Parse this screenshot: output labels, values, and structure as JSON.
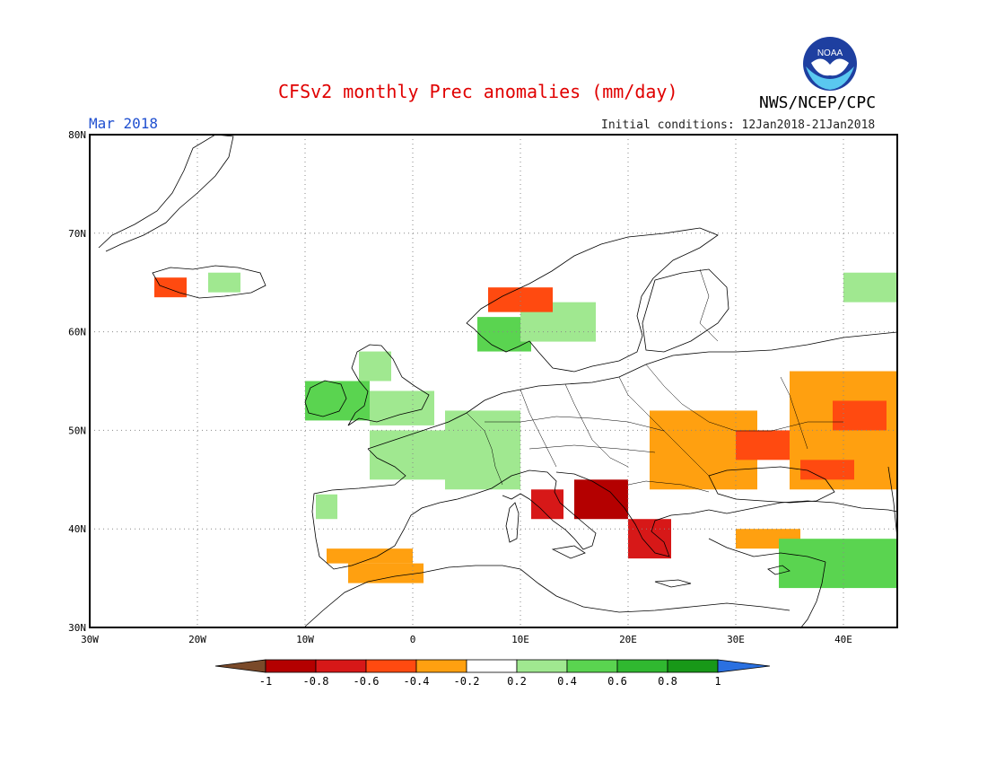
{
  "header": {
    "title": "CFSv2 monthly Prec anomalies (mm/day)",
    "month": "Mar 2018",
    "initial_conditions": "Initial conditions: 12Jan2018-21Jan2018",
    "agency": "NWS/NCEP/CPC",
    "logo_text": "NOAA"
  },
  "map": {
    "lon_range": [
      -30,
      45
    ],
    "lat_range": [
      30,
      80
    ],
    "lat_labels": [
      {
        "lat": 80,
        "text": "80N"
      },
      {
        "lat": 70,
        "text": "70N"
      },
      {
        "lat": 60,
        "text": "60N"
      },
      {
        "lat": 50,
        "text": "50N"
      },
      {
        "lat": 40,
        "text": "40N"
      },
      {
        "lat": 30,
        "text": "30N"
      }
    ],
    "lon_labels": [
      {
        "lon": -30,
        "text": "30W"
      },
      {
        "lon": -20,
        "text": "20W"
      },
      {
        "lon": -10,
        "text": "10W"
      },
      {
        "lon": 0,
        "text": "0"
      },
      {
        "lon": 10,
        "text": "10E"
      },
      {
        "lon": 20,
        "text": "20E"
      },
      {
        "lon": 30,
        "text": "30E"
      },
      {
        "lon": 40,
        "text": "40E"
      }
    ],
    "gridline_style": "dotted",
    "coastline_color": "#000000"
  },
  "colorbar": {
    "tick_labels": [
      "-1",
      "-0.8",
      "-0.6",
      "-0.4",
      "-0.2",
      "0.2",
      "0.4",
      "0.6",
      "0.8",
      "1"
    ],
    "colors": [
      "#7a4a2a",
      "#b40000",
      "#d71818",
      "#ff4a10",
      "#ffa010",
      "#ffffff",
      "#a0e890",
      "#5ad450",
      "#30b830",
      "#189818",
      "#2a70e0"
    ]
  },
  "anomaly_regions": [
    {
      "name": "Ireland / West UK",
      "class": 7,
      "lon": [
        -10,
        -4
      ],
      "lat": [
        51,
        55
      ]
    },
    {
      "name": "Scotland",
      "class": 6,
      "lon": [
        -5,
        -2
      ],
      "lat": [
        55,
        58
      ]
    },
    {
      "name": "England",
      "class": 6,
      "lon": [
        -4,
        2
      ],
      "lat": [
        50.5,
        54
      ]
    },
    {
      "name": "France / Benelux",
      "class": 6,
      "lon": [
        -4,
        6
      ],
      "lat": [
        45,
        50
      ]
    },
    {
      "name": "Central Europe",
      "class": 6,
      "lon": [
        3,
        10
      ],
      "lat": [
        44,
        52
      ]
    },
    {
      "name": "Southern Norway",
      "class": 7,
      "lon": [
        6,
        11
      ],
      "lat": [
        58,
        61.5
      ]
    },
    {
      "name": "Sweden",
      "class": 6,
      "lon": [
        10,
        17
      ],
      "lat": [
        59,
        63
      ]
    },
    {
      "name": "Iceland west",
      "class": 3,
      "lon": [
        -24,
        -21
      ],
      "lat": [
        63.5,
        65.5
      ]
    },
    {
      "name": "Iceland east",
      "class": 6,
      "lon": [
        -19,
        -16
      ],
      "lat": [
        64,
        66
      ]
    },
    {
      "name": "Norway coast",
      "class": 3,
      "lon": [
        7,
        13
      ],
      "lat": [
        62,
        64.5
      ]
    },
    {
      "name": "NW Iberia",
      "class": 6,
      "lon": [
        -9,
        -7
      ],
      "lat": [
        41,
        43.5
      ]
    },
    {
      "name": "SE Spain",
      "class": 4,
      "lon": [
        -8,
        0
      ],
      "lat": [
        36.5,
        38
      ]
    },
    {
      "name": "Morocco / Gibraltar",
      "class": 4,
      "lon": [
        -6,
        1
      ],
      "lat": [
        34.5,
        36.5
      ]
    },
    {
      "name": "Tyrrhenian / Italy",
      "class": 2,
      "lon": [
        11,
        14
      ],
      "lat": [
        41,
        44
      ]
    },
    {
      "name": "Adriatic / Balkans",
      "class": 1,
      "lon": [
        15,
        20
      ],
      "lat": [
        41,
        45
      ]
    },
    {
      "name": "Greece",
      "class": 2,
      "lon": [
        20,
        24
      ],
      "lat": [
        37,
        41
      ]
    },
    {
      "name": "Eastern Europe",
      "class": 4,
      "lon": [
        22,
        32
      ],
      "lat": [
        44,
        52
      ]
    },
    {
      "name": "Ukraine",
      "class": 3,
      "lon": [
        30,
        36
      ],
      "lat": [
        47,
        50
      ]
    },
    {
      "name": "Western Russia",
      "class": 4,
      "lon": [
        35,
        45
      ],
      "lat": [
        44,
        56
      ]
    },
    {
      "name": "Western Russia core",
      "class": 3,
      "lon": [
        39,
        44
      ],
      "lat": [
        50,
        53
      ]
    },
    {
      "name": "Black Sea north",
      "class": 3,
      "lon": [
        36,
        41
      ],
      "lat": [
        45,
        47
      ]
    },
    {
      "name": "Turkey",
      "class": 4,
      "lon": [
        30,
        36
      ],
      "lat": [
        38,
        40
      ]
    },
    {
      "name": "Eastern Mediterranean",
      "class": 7,
      "lon": [
        34,
        45
      ],
      "lat": [
        34,
        39
      ]
    },
    {
      "name": "NW Russia",
      "class": 6,
      "lon": [
        40,
        45
      ],
      "lat": [
        63,
        66
      ]
    }
  ]
}
